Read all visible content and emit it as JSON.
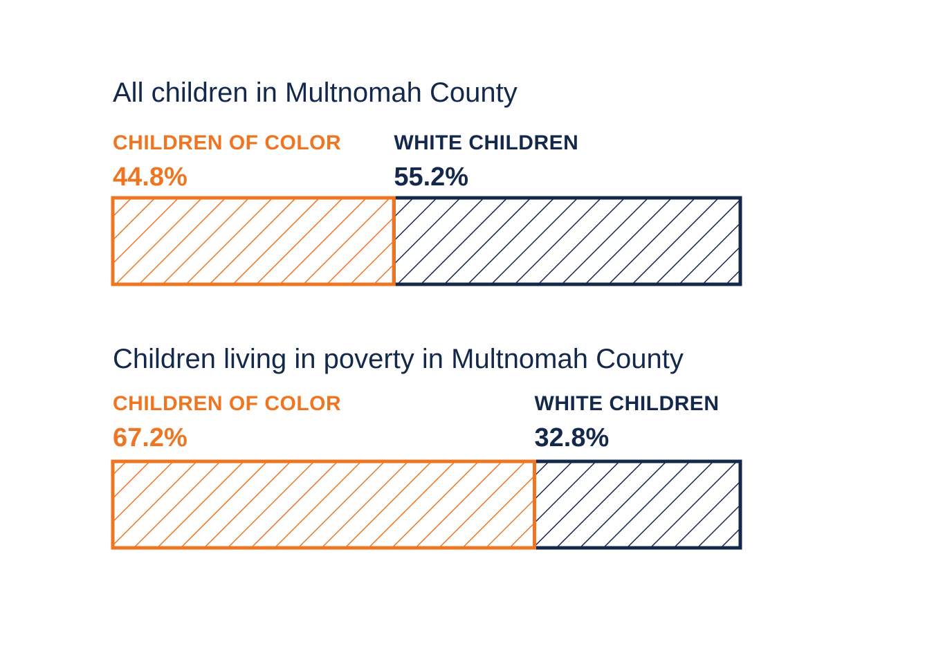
{
  "colors": {
    "children_of_color": "#ee7623",
    "white_children": "#13284b",
    "background": "#ffffff"
  },
  "chart_data": [
    {
      "type": "bar",
      "stacked": true,
      "orientation": "horizontal",
      "title": "All children in Multnomah County",
      "categories": [
        "CHILDREN OF COLOR",
        "WHITE CHILDREN"
      ],
      "values": [
        44.8,
        55.2
      ],
      "value_labels": [
        "44.8%",
        "55.2%"
      ],
      "unit": "%",
      "fill_pattern": "diagonal-hatch"
    },
    {
      "type": "bar",
      "stacked": true,
      "orientation": "horizontal",
      "title": "Children living in poverty in Multnomah County",
      "categories": [
        "CHILDREN OF COLOR",
        "WHITE CHILDREN"
      ],
      "values": [
        67.2,
        32.8
      ],
      "value_labels": [
        "67.2%",
        "32.8%"
      ],
      "unit": "%",
      "fill_pattern": "diagonal-hatch"
    }
  ]
}
